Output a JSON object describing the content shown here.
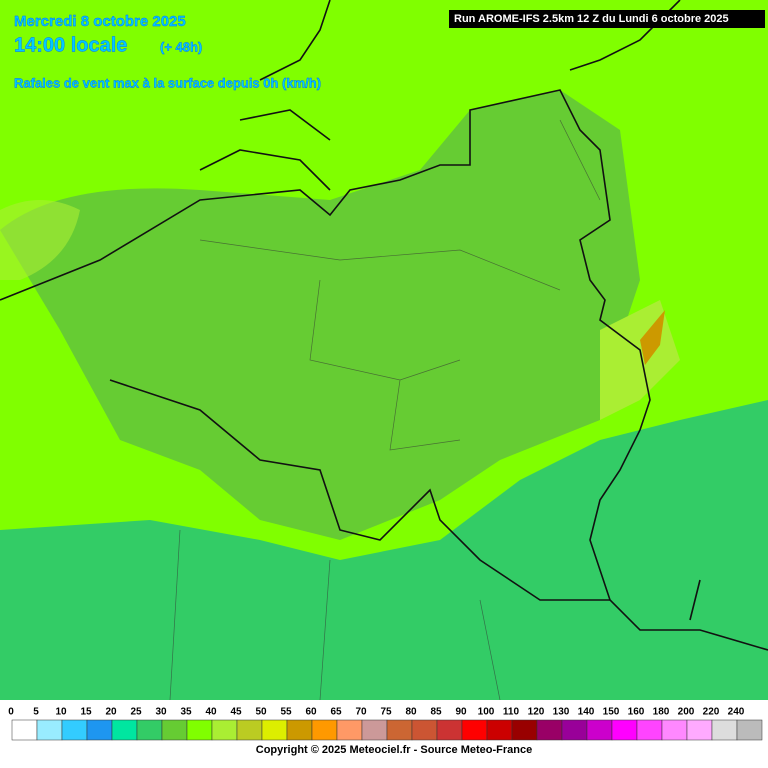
{
  "header": {
    "date": "Mercredi 8 octobre 2025",
    "time": "14:00 locale",
    "lead": "(+ 48h)",
    "parameter": "Rafales de vent max à la surface depuis 0h (km/h)",
    "run": "Run AROME-IFS 2.5km 12 Z du Lundi 6 octobre 2025"
  },
  "legend": {
    "labels": [
      "0",
      "5",
      "10",
      "15",
      "20",
      "25",
      "30",
      "35",
      "40",
      "45",
      "50",
      "55",
      "60",
      "65",
      "70",
      "75",
      "80",
      "85",
      "90",
      "100",
      "110",
      "120",
      "130",
      "140",
      "150",
      "160",
      "180",
      "200",
      "220",
      "240"
    ],
    "colors": [
      "#ffffff",
      "#99ecff",
      "#33ccff",
      "#1e96f0",
      "#00e6a0",
      "#33cc66",
      "#66cc33",
      "#80ff00",
      "#aaee33",
      "#bbcc22",
      "#ddee00",
      "#cc9900",
      "#ff9900",
      "#ff9966",
      "#cc9999",
      "#cc6633",
      "#cc5533",
      "#cc3333",
      "#ff0000",
      "#cc0000",
      "#990000",
      "#990066",
      "#990099",
      "#cc00cc",
      "#ff00ff",
      "#ff44ff",
      "#ff88ff",
      "#ffaaff",
      "#dddddd",
      "#bbbbbb"
    ]
  },
  "footer": {
    "copyright": "Copyright © 2025 Meteociel.fr - Source Meteo-France"
  }
}
